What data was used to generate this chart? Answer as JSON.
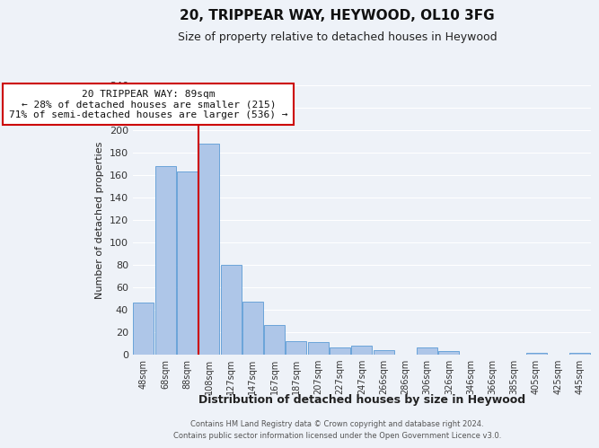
{
  "title": "20, TRIPPEAR WAY, HEYWOOD, OL10 3FG",
  "subtitle": "Size of property relative to detached houses in Heywood",
  "xlabel": "Distribution of detached houses by size in Heywood",
  "ylabel": "Number of detached properties",
  "bar_labels": [
    "48sqm",
    "68sqm",
    "88sqm",
    "108sqm",
    "127sqm",
    "147sqm",
    "167sqm",
    "187sqm",
    "207sqm",
    "227sqm",
    "247sqm",
    "266sqm",
    "286sqm",
    "306sqm",
    "326sqm",
    "346sqm",
    "366sqm",
    "385sqm",
    "405sqm",
    "425sqm",
    "445sqm"
  ],
  "bar_values": [
    46,
    168,
    163,
    188,
    80,
    47,
    26,
    12,
    11,
    6,
    8,
    4,
    0,
    6,
    3,
    0,
    0,
    0,
    1,
    0,
    1
  ],
  "bar_color": "#aec6e8",
  "bar_edgecolor": "#5b9bd5",
  "ylim": [
    0,
    240
  ],
  "yticks": [
    0,
    20,
    40,
    60,
    80,
    100,
    120,
    140,
    160,
    180,
    200,
    220,
    240
  ],
  "property_line_x": 2.5,
  "property_line_color": "#cc0000",
  "annotation_title": "20 TRIPPEAR WAY: 89sqm",
  "annotation_line1": "← 28% of detached houses are smaller (215)",
  "annotation_line2": "71% of semi-detached houses are larger (536) →",
  "annotation_box_color": "#cc0000",
  "background_color": "#eef2f8",
  "plot_bg_color": "#eef2f8",
  "grid_color": "#ffffff",
  "footer_line1": "Contains HM Land Registry data © Crown copyright and database right 2024.",
  "footer_line2": "Contains public sector information licensed under the Open Government Licence v3.0."
}
